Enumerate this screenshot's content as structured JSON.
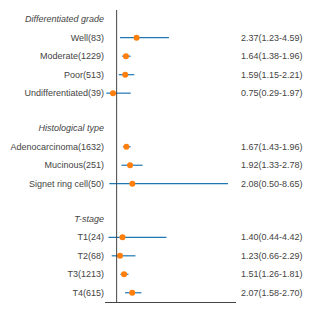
{
  "chart_data": {
    "type": "forest",
    "groups": [
      {
        "header": "Differentiated grade",
        "rows": [
          {
            "label": "Well(83)",
            "value": 2.37,
            "ci_lo": 1.23,
            "ci_hi": 4.59,
            "text": "2.37(1.23-4.59)"
          },
          {
            "label": "Moderate(1229)",
            "value": 1.64,
            "ci_lo": 1.38,
            "ci_hi": 1.96,
            "text": "1.64(1.38-1.96)"
          },
          {
            "label": "Poor(513)",
            "value": 1.59,
            "ci_lo": 1.15,
            "ci_hi": 2.21,
            "text": "1.59(1.15-2.21)"
          },
          {
            "label": "Undifferentiated(39)",
            "value": 0.75,
            "ci_lo": 0.29,
            "ci_hi": 1.97,
            "text": "0.75(0.29-1.97)"
          }
        ]
      },
      {
        "header": "Histological type",
        "rows": [
          {
            "label": "Adenocarcinoma(1632)",
            "value": 1.67,
            "ci_lo": 1.43,
            "ci_hi": 1.96,
            "text": "1.67(1.43-1.96)"
          },
          {
            "label": "Mucinous(251)",
            "value": 1.92,
            "ci_lo": 1.33,
            "ci_hi": 2.78,
            "text": "1.92(1.33-2.78)"
          },
          {
            "label": "Signet ring cell(50)",
            "value": 2.08,
            "ci_lo": 0.5,
            "ci_hi": 8.65,
            "text": "2.08(0.50-8.65)"
          }
        ]
      },
      {
        "header": "T-stage",
        "rows": [
          {
            "label": "T1(24)",
            "value": 1.4,
            "ci_lo": 0.44,
            "ci_hi": 4.42,
            "text": "1.40(0.44-4.42)"
          },
          {
            "label": "T2(68)",
            "value": 1.23,
            "ci_lo": 0.66,
            "ci_hi": 2.29,
            "text": "1.23(0.66-2.29)"
          },
          {
            "label": "T3(1213)",
            "value": 1.51,
            "ci_lo": 1.26,
            "ci_hi": 1.81,
            "text": "1.51(1.26-1.81)"
          },
          {
            "label": "T4(615)",
            "value": 2.07,
            "ci_lo": 1.58,
            "ci_hi": 2.7,
            "text": "2.07(1.58-2.70)"
          }
        ]
      }
    ],
    "xlim": [
      0.2,
      9.2
    ],
    "reference_line": 1.0,
    "tick_labels": false,
    "grid": false
  }
}
